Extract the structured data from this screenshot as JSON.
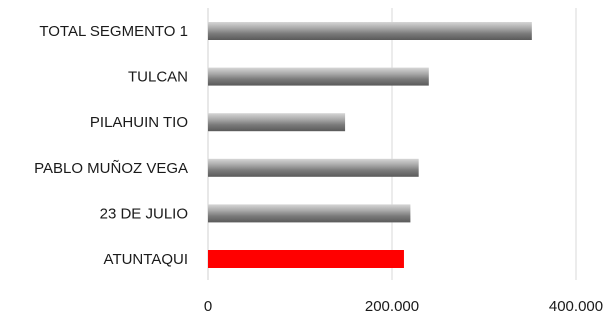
{
  "chart_data": {
    "type": "bar",
    "orientation": "horizontal",
    "title": "",
    "xlabel": "",
    "ylabel": "",
    "categories": [
      "TOTAL SEGMENTO 1",
      "TULCAN",
      "PILAHUIN TIO",
      "PABLO MUÑOZ VEGA",
      "23 DE JULIO",
      "ATUNTAQUI"
    ],
    "values": [
      352000,
      240000,
      149000,
      229000,
      220000,
      213000
    ],
    "xlim": [
      0,
      400000
    ],
    "xticks": [
      0,
      200000,
      400000
    ],
    "xtick_labels": [
      "0",
      "200.000",
      "400.000"
    ],
    "grid": true,
    "legend": "none",
    "colors": {
      "default_bar": "#8c8c8c",
      "highlight_bar": "#ff0000",
      "gridline": "#d9d9d9"
    },
    "highlight_category": "ATUNTAQUI"
  }
}
